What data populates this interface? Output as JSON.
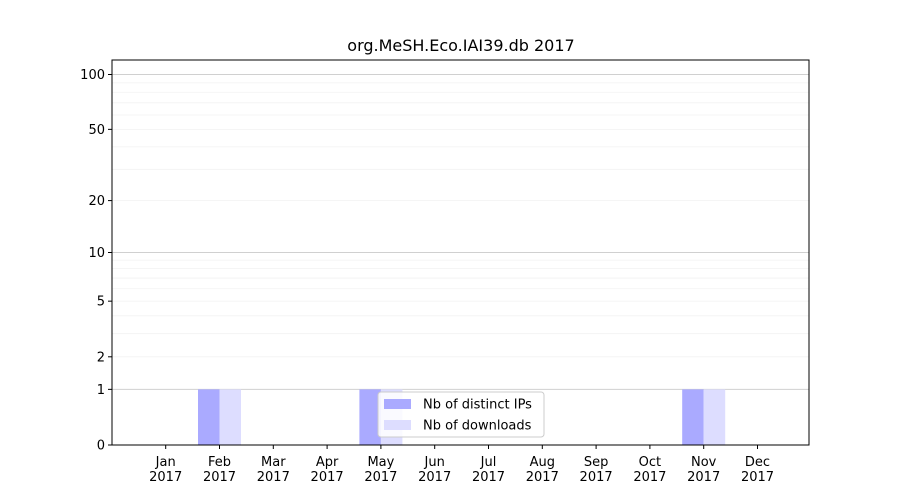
{
  "chart_data": {
    "type": "bar",
    "title": "org.MeSH.Eco.IAI39.db 2017",
    "xlabel": "",
    "ylabel": "",
    "y_scale": "symlog",
    "ylim": [
      0,
      120
    ],
    "categories": [
      [
        "Jan",
        "2017"
      ],
      [
        "Feb",
        "2017"
      ],
      [
        "Mar",
        "2017"
      ],
      [
        "Apr",
        "2017"
      ],
      [
        "May",
        "2017"
      ],
      [
        "Jun",
        "2017"
      ],
      [
        "Jul",
        "2017"
      ],
      [
        "Aug",
        "2017"
      ],
      [
        "Sep",
        "2017"
      ],
      [
        "Oct",
        "2017"
      ],
      [
        "Nov",
        "2017"
      ],
      [
        "Dec",
        "2017"
      ]
    ],
    "yticks": [
      {
        "value": 0,
        "label": "0"
      },
      {
        "value": 1,
        "label": "1"
      },
      {
        "value": 2,
        "label": "2"
      },
      {
        "value": 5,
        "label": "5"
      },
      {
        "value": 10,
        "label": "10"
      },
      {
        "value": 20,
        "label": "20"
      },
      {
        "value": 50,
        "label": "50"
      },
      {
        "value": 100,
        "label": "100"
      }
    ],
    "series": [
      {
        "name": "Nb of distinct IPs",
        "color": "#aaaaff",
        "values": [
          0,
          1,
          0,
          0,
          1,
          0,
          0,
          0,
          0,
          0,
          1,
          0
        ]
      },
      {
        "name": "Nb of downloads",
        "color": "#ddddff",
        "values": [
          0,
          1,
          0,
          0,
          1,
          0,
          0,
          0,
          0,
          0,
          1,
          0
        ]
      }
    ],
    "grid": true,
    "legend_position": "lower-center"
  }
}
